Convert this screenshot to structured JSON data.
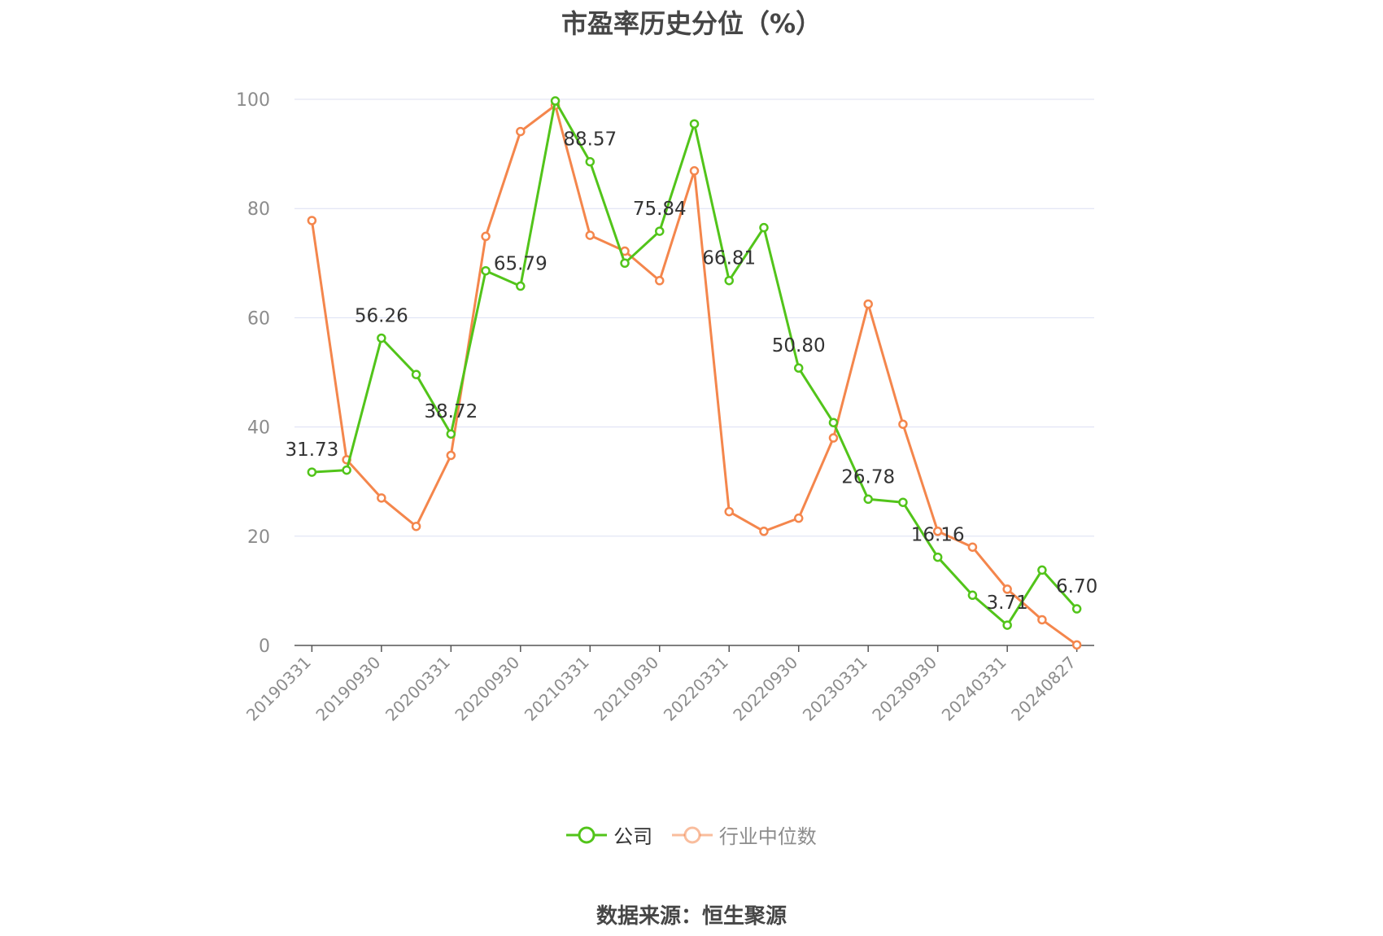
{
  "title": "市盈率历史分位（%）",
  "source": "数据来源：恒生聚源",
  "colors": {
    "company": "#52c41a",
    "industry": "#f4864c",
    "grid": "#dcdff2",
    "axis": "#555555"
  },
  "chart_data": {
    "type": "line",
    "title": "市盈率历史分位（%）",
    "ylim": [
      0,
      100
    ],
    "yticks": [
      0,
      20,
      40,
      60,
      80,
      100
    ],
    "grid": true,
    "legend_position": "bottom",
    "xtick_labels": [
      "20190331",
      "20190930",
      "20200331",
      "20200930",
      "20210331",
      "20210930",
      "20220331",
      "20220930",
      "20230331",
      "20230930",
      "20240331",
      "20240827"
    ],
    "x": [
      "20190331",
      "20190630",
      "20190930",
      "20191231",
      "20200331",
      "20200630",
      "20200930",
      "20201231",
      "20210331",
      "20210630",
      "20210930",
      "20211231",
      "20220331",
      "20220630",
      "20220930",
      "20221231",
      "20230331",
      "20230630",
      "20230930",
      "20231231",
      "20240331",
      "20240630",
      "20240827"
    ],
    "series": [
      {
        "name": "公司",
        "values": [
          31.73,
          32.1,
          56.26,
          49.6,
          38.72,
          68.6,
          65.79,
          99.7,
          88.57,
          70.0,
          75.84,
          95.5,
          66.81,
          76.5,
          50.8,
          40.8,
          26.78,
          26.2,
          16.16,
          9.2,
          3.71,
          13.8,
          6.7
        ],
        "labels": {
          "0": "31.73",
          "2": "56.26",
          "4": "38.72",
          "6": "65.79",
          "8": "88.57",
          "10": "75.84",
          "12": "66.81",
          "14": "50.80",
          "16": "26.78",
          "18": "16.16",
          "20": "3.71",
          "22": "6.70"
        }
      },
      {
        "name": "行业中位数",
        "values": [
          77.8,
          34.0,
          27.0,
          21.8,
          34.8,
          74.9,
          94.1,
          98.9,
          75.1,
          72.2,
          66.8,
          86.9,
          24.5,
          20.9,
          23.3,
          38.0,
          62.5,
          40.5,
          20.9,
          18.0,
          10.3,
          4.7,
          0.1
        ]
      }
    ]
  }
}
